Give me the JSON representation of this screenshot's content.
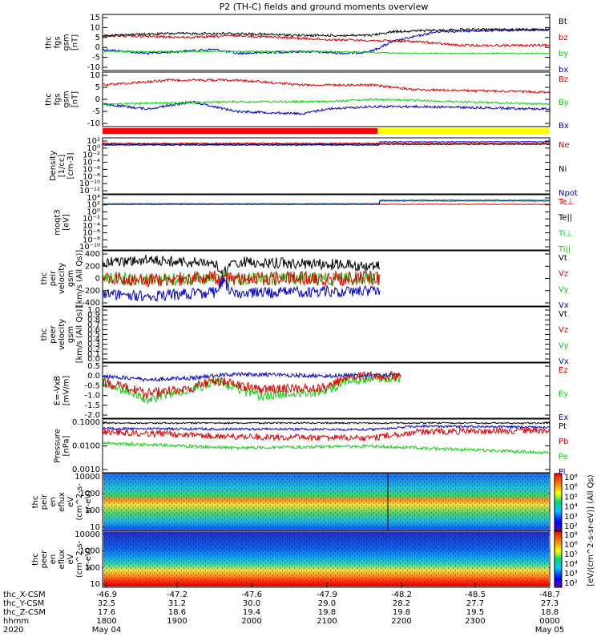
{
  "title": "P2 (TH-C) fields and ground moments overview",
  "colors": {
    "black": "#000000",
    "red": "#e00000",
    "green": "#10d010",
    "blue": "#0000d0",
    "yellow": "#ffff00",
    "redbar": "#ff0000"
  },
  "panels": [
    {
      "id": "fgs_gsm",
      "ylabel": [
        "thc",
        "fgs",
        "gsm",
        "[nT]"
      ],
      "ticks": [
        "15",
        "10",
        "5",
        "0",
        "-5",
        "-10"
      ],
      "legend": [
        {
          "text": "Bt",
          "color": "#000000"
        },
        {
          "text": "bz",
          "color": "#e00000"
        },
        {
          "text": "by",
          "color": "#10d010"
        },
        {
          "text": "bx",
          "color": "#0000d0"
        }
      ]
    },
    {
      "id": "fgs_gsm2",
      "ylabel": [
        "thc",
        "fgs",
        "gsm",
        "[nT]"
      ],
      "ticks": [
        "10",
        "5",
        "0",
        "-5",
        "-10"
      ],
      "legend": [
        {
          "text": "Bz",
          "color": "#e00000"
        },
        {
          "text": "By",
          "color": "#10d010"
        },
        {
          "text": "Bx",
          "color": "#0000d0"
        }
      ]
    },
    {
      "id": "density",
      "ylabel": [
        "Density",
        "[1/cc]",
        "[cm-3]"
      ],
      "ticks": [
        "10²",
        "10⁰",
        "10⁻²",
        "10⁻⁴",
        "10⁻⁶",
        "10⁻⁸",
        "10⁻¹⁰",
        "10⁻¹²"
      ],
      "legend": [
        {
          "text": "Ne",
          "color": "#e00000"
        },
        {
          "text": "Ni",
          "color": "#000000"
        },
        {
          "text": "Npot",
          "color": "#0000d0"
        }
      ]
    },
    {
      "id": "temp",
      "ylabel": [
        "moqt3",
        "[eV]"
      ],
      "ticks": [
        "10⁴",
        "10²",
        "10⁰",
        "10⁻²",
        "10⁻⁴",
        "10⁻⁶",
        "10⁻⁸",
        "10⁻¹⁰"
      ],
      "legend": [
        {
          "text": "Te⊥",
          "color": "#e00000"
        },
        {
          "text": "Te||",
          "color": "#000000"
        },
        {
          "text": "Ti⊥",
          "color": "#10d010"
        },
        {
          "text": "Ti||",
          "color": "#10d010"
        }
      ]
    },
    {
      "id": "peir_vel",
      "ylabel": [
        "thc",
        "peir",
        "velocity",
        "gsm",
        "[km/s (All Qs)]"
      ],
      "ticks": [
        "400",
        "200",
        "0",
        "-200",
        "-400"
      ],
      "legend": [
        {
          "text": "Vt",
          "color": "#000000"
        },
        {
          "text": "Vz",
          "color": "#e00000"
        },
        {
          "text": "Vy",
          "color": "#10d010"
        },
        {
          "text": "Vx",
          "color": "#0000d0"
        }
      ]
    },
    {
      "id": "peer_vel",
      "ylabel": [
        "thc",
        "peer",
        "velocity",
        "gsm",
        "[km/s (All Qs)]"
      ],
      "ticks": [
        "1.0",
        "0.9",
        "0.8",
        "0.7",
        "0.6",
        "0.5",
        "0.4",
        "0.3",
        "0.2",
        "0.1",
        "0.0"
      ],
      "legend": [
        {
          "text": "Vt",
          "color": "#000000"
        },
        {
          "text": "Vz",
          "color": "#e00000"
        },
        {
          "text": "Vy",
          "color": "#10d010"
        },
        {
          "text": "Vx",
          "color": "#0000d0"
        }
      ]
    },
    {
      "id": "efield",
      "ylabel": [
        "E=-VxB",
        "[mV/m]"
      ],
      "ticks": [
        "0.5",
        "0.0",
        "-0.5",
        "-1.0",
        "-1.5",
        "-2.0"
      ],
      "legend": [
        {
          "text": "Ez",
          "color": "#e00000"
        },
        {
          "text": "Ey",
          "color": "#10d010"
        },
        {
          "text": "Ex",
          "color": "#0000d0"
        }
      ]
    },
    {
      "id": "pressure",
      "ylabel": [
        "Pressure",
        "[nPa]"
      ],
      "ticks": [
        "0.1000",
        "0.0100",
        "0.0010"
      ],
      "legend": [
        {
          "text": "Pt",
          "color": "#000000"
        },
        {
          "text": "Pb",
          "color": "#e00000"
        },
        {
          "text": "Pe",
          "color": "#10d010"
        },
        {
          "text": "Pi",
          "color": "#0000d0"
        }
      ]
    },
    {
      "id": "peir_spec",
      "ylabel": [
        "thc",
        "peir",
        "en",
        "eflux",
        "eV",
        "(cm^2-s-",
        "sr-eV)"
      ],
      "ticks": [
        "10000",
        "1000",
        "100",
        "10"
      ],
      "legend": []
    },
    {
      "id": "peer_spec",
      "ylabel": [
        "thc",
        "peer",
        "en",
        "eflux",
        "eV",
        "(cm^2-s-",
        "sr-eV)"
      ],
      "ticks": [
        "10000",
        "1000",
        "100",
        "10"
      ],
      "legend": []
    }
  ],
  "colorbar": {
    "ticks": [
      "10⁸",
      "10⁶",
      "10⁵",
      "10⁴",
      "10³",
      "10²"
    ],
    "ticks2": [
      "10⁸",
      "10⁶",
      "10⁵",
      "10⁴",
      "10³",
      "10²"
    ],
    "label": "[eV/(cm^2-s-sr-eV)] (All Qs)"
  },
  "xaxis": {
    "rows": [
      {
        "label": "thc_X-CSM",
        "values": [
          "-46.9",
          "-47.2",
          "-47.6",
          "-47.9",
          "-48.2",
          "-48.5",
          "-48.7"
        ]
      },
      {
        "label": "thc_Y-CSM",
        "values": [
          "32.5",
          "31.2",
          "30.0",
          "29.0",
          "28.2",
          "27.7",
          "27.3"
        ]
      },
      {
        "label": "thc_Z-CSM",
        "values": [
          "17.6",
          "18.6",
          "19.4",
          "19.8",
          "19.8",
          "19.5",
          "18.8"
        ]
      },
      {
        "label": "hhmm",
        "values": [
          "1800",
          "1900",
          "2000",
          "2100",
          "2200",
          "2300",
          "0000"
        ]
      },
      {
        "label": "2020",
        "values": [
          "May 04",
          "",
          "",
          "",
          "",
          "",
          "May 05"
        ]
      }
    ]
  },
  "chart_data": {
    "type": "line",
    "title": "P2 (TH-C) fields and ground moments overview",
    "x": [
      "1800",
      "1900",
      "2000",
      "2100",
      "2200",
      "2300",
      "0000"
    ],
    "series": [
      {
        "name": "Bt",
        "values": [
          6,
          6,
          7,
          5,
          7,
          9,
          9
        ]
      },
      {
        "name": "bz",
        "values": [
          6,
          5,
          6,
          5,
          4,
          2,
          2
        ]
      },
      {
        "name": "by",
        "values": [
          -2,
          -3,
          -2,
          -2,
          -2,
          -2,
          -2
        ]
      },
      {
        "name": "bx",
        "values": [
          -1,
          -3,
          1,
          -2,
          7,
          8,
          9
        ]
      },
      {
        "name": "Vt",
        "values": [
          270,
          250,
          230,
          210,
          190,
          null,
          null
        ]
      },
      {
        "name": "Vz",
        "values": [
          0,
          -10,
          10,
          0,
          0,
          null,
          null
        ]
      },
      {
        "name": "Vx",
        "values": [
          -250,
          -230,
          -210,
          -200,
          -190,
          null,
          null
        ]
      },
      {
        "name": "Ez",
        "values": [
          -0.5,
          -0.7,
          -0.5,
          -0.2,
          -0.1,
          null,
          null
        ]
      },
      {
        "name": "Ex",
        "values": [
          0.0,
          -0.2,
          0.1,
          0.0,
          0.0,
          null,
          null
        ]
      },
      {
        "name": "Pt",
        "values": [
          0.07,
          0.07,
          0.07,
          0.07,
          0.06,
          0.07,
          0.06
        ]
      },
      {
        "name": "Pb",
        "values": [
          0.04,
          0.03,
          0.02,
          0.02,
          0.04,
          0.03,
          0.04
        ]
      },
      {
        "name": "Pe",
        "values": [
          0.004,
          0.003,
          0.003,
          0.003,
          0.005,
          0.003,
          0.002
        ]
      }
    ]
  }
}
